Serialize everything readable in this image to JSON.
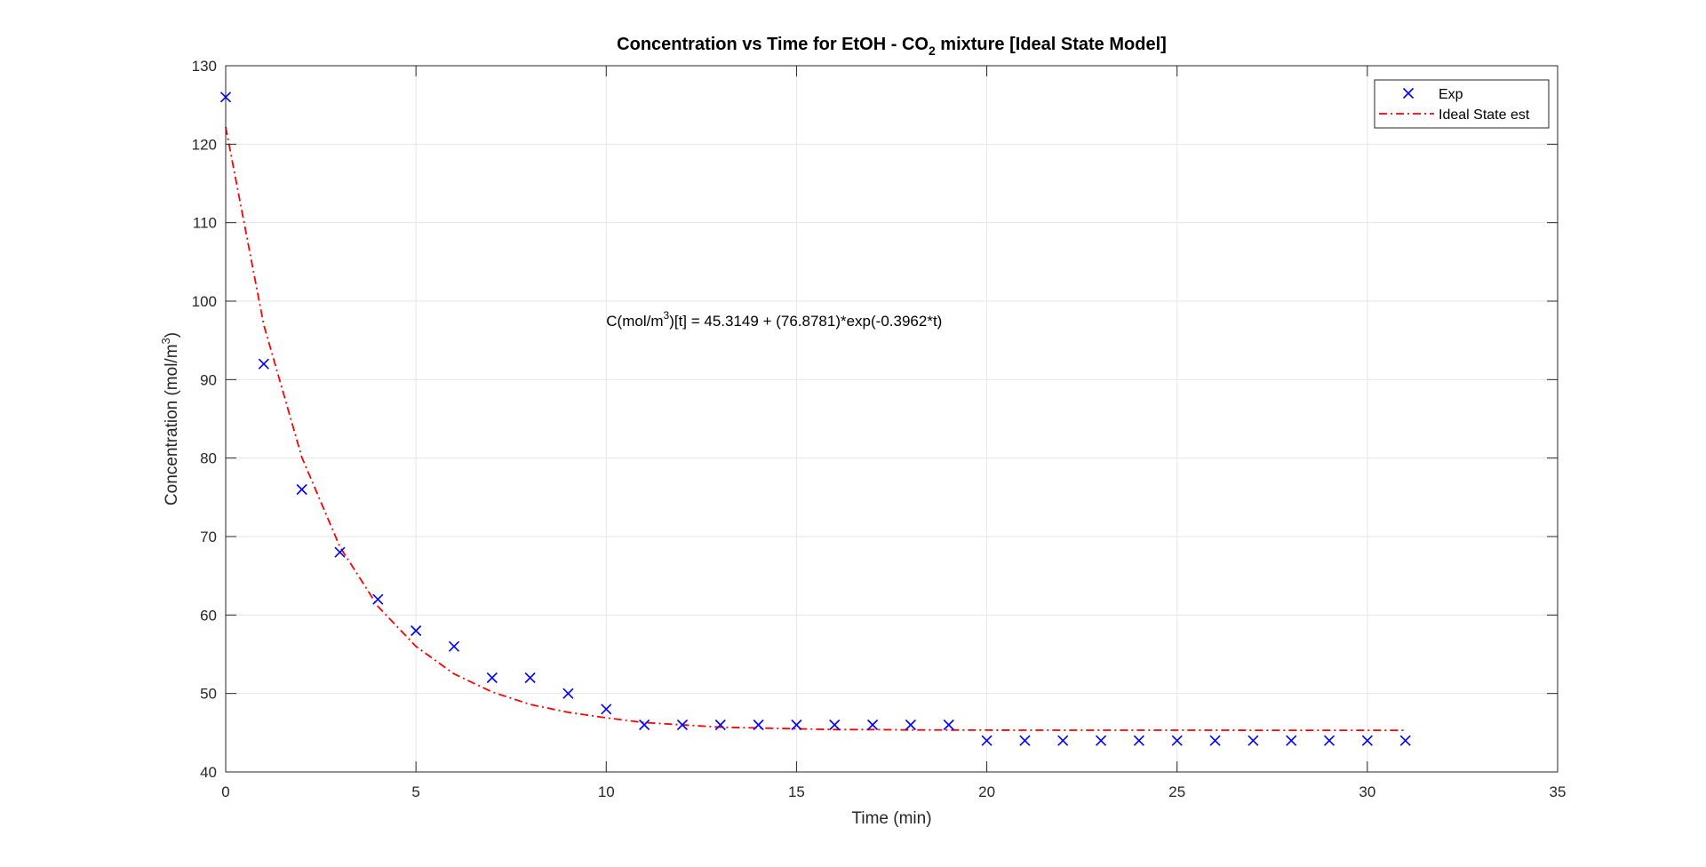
{
  "colors": {
    "exp_marker": "#0000ff",
    "fit_line": "#ff0000",
    "grid": "#e6e6e6",
    "axis": "#262626",
    "background": "#ffffff"
  },
  "chart_data": {
    "type": "scatter",
    "title": {
      "prefix": "Concentration vs Time for EtOH - CO",
      "subscript": "2",
      "suffix": " mixture [Ideal State Model]"
    },
    "xlabel": "Time (min)",
    "ylabel": {
      "main": "Concentration (mol/m",
      "sup": "3",
      "close": ")"
    },
    "xlim": [
      0,
      35
    ],
    "ylim": [
      40,
      130
    ],
    "xticks": [
      0,
      5,
      10,
      15,
      20,
      25,
      30,
      35
    ],
    "yticks": [
      40,
      50,
      60,
      70,
      80,
      90,
      100,
      110,
      120,
      130
    ],
    "grid": true,
    "legend": {
      "placement": "top-right",
      "entries": [
        "Exp",
        "Ideal State est"
      ]
    },
    "annotation": {
      "before": "C(mol/m",
      "sup": "3",
      "after": ")[t] = 45.3149 + (76.8781)*exp(-0.3962*t)",
      "x": 10,
      "y": 97.5
    },
    "series": [
      {
        "name": "Exp",
        "style": "marker-x",
        "x": [
          0,
          1,
          2,
          3,
          4,
          5,
          6,
          7,
          8,
          9,
          10,
          11,
          12,
          13,
          14,
          15,
          16,
          17,
          18,
          19,
          20,
          21,
          22,
          23,
          24,
          25,
          26,
          27,
          28,
          29,
          30,
          31
        ],
        "y": [
          126,
          92,
          76,
          68,
          62,
          58,
          56,
          52,
          52,
          50,
          48,
          46,
          46,
          46,
          46,
          46,
          46,
          46,
          46,
          46,
          44,
          44,
          44,
          44,
          44,
          44,
          44,
          44,
          44,
          44,
          44,
          44
        ]
      },
      {
        "name": "Ideal State est",
        "style": "dash-dot-line",
        "x": [
          0,
          1,
          2,
          3,
          4,
          5,
          6,
          7,
          8,
          9,
          10,
          11,
          12,
          13,
          14,
          15,
          16,
          17,
          18,
          19,
          20,
          21,
          22,
          23,
          24,
          25,
          26,
          27,
          28,
          29,
          30,
          31
        ],
        "y": [
          122.19,
          97.0,
          80.1,
          68.7,
          61.1,
          56.0,
          52.5,
          50.2,
          48.6,
          47.6,
          46.9,
          46.3,
          46.0,
          45.7,
          45.6,
          45.5,
          45.4,
          45.4,
          45.35,
          45.34,
          45.33,
          45.32,
          45.32,
          45.32,
          45.32,
          45.32,
          45.32,
          45.31,
          45.31,
          45.31,
          45.31,
          45.31
        ]
      }
    ]
  }
}
